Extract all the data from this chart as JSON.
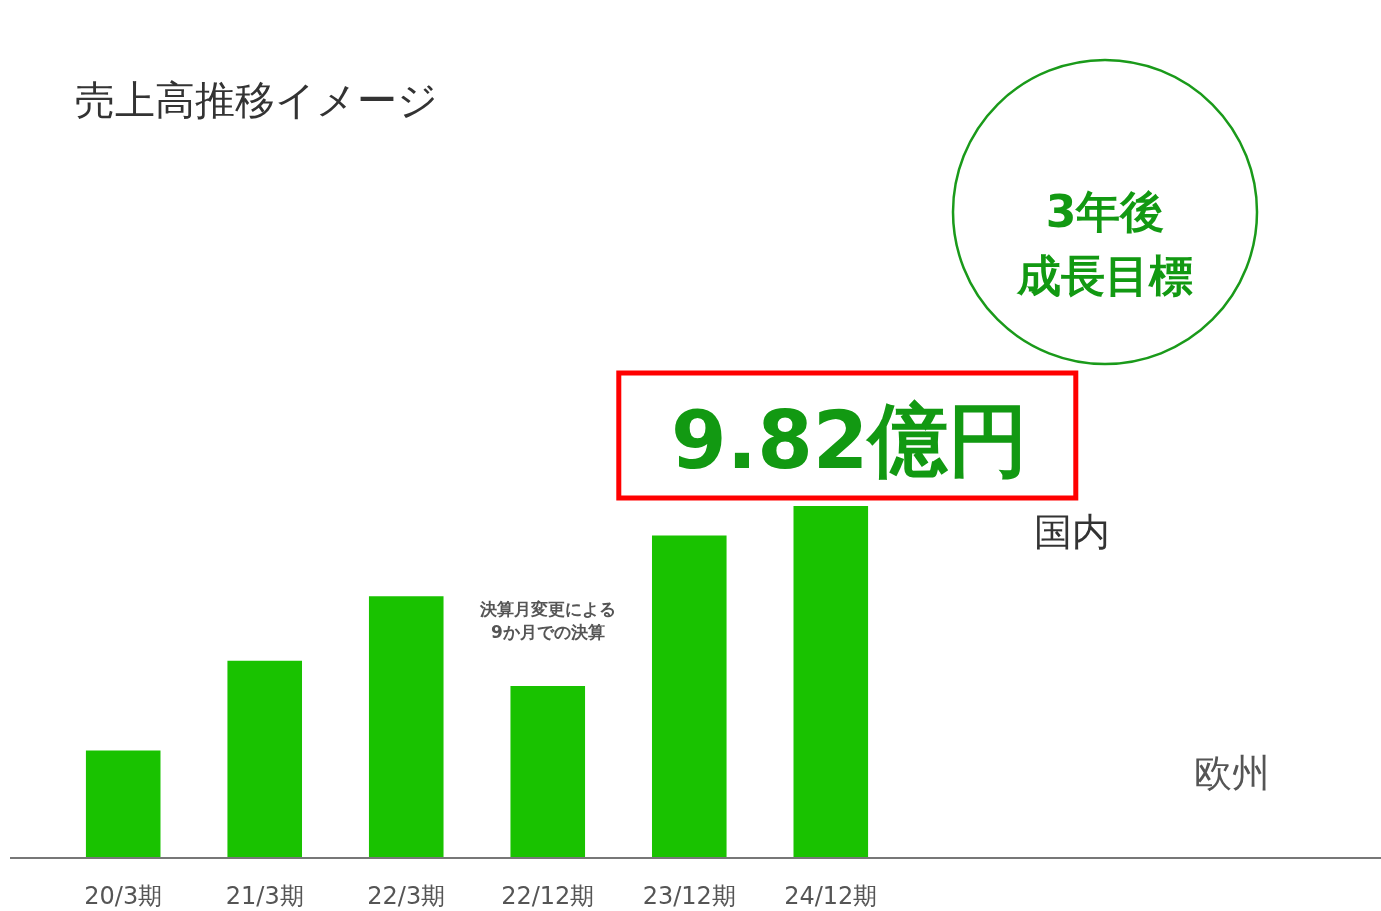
{
  "chart_data": {
    "type": "bar",
    "title": "売上高推移イメージ",
    "categories": [
      "20/3期",
      "21/3期",
      "22/3期",
      "22/12期",
      "23/12期",
      "24/12期"
    ],
    "values": [
      3.0,
      5.5,
      7.3,
      4.8,
      9.0,
      9.82
    ],
    "color": "#19c200",
    "value_labels": [
      null,
      null,
      null,
      null,
      null,
      "9.82億円"
    ],
    "annotations": [
      "決算月変更による9か月での決算",
      "3年後成長目標",
      "国内",
      "欧州"
    ],
    "tick_labels": "x"
  }
}
